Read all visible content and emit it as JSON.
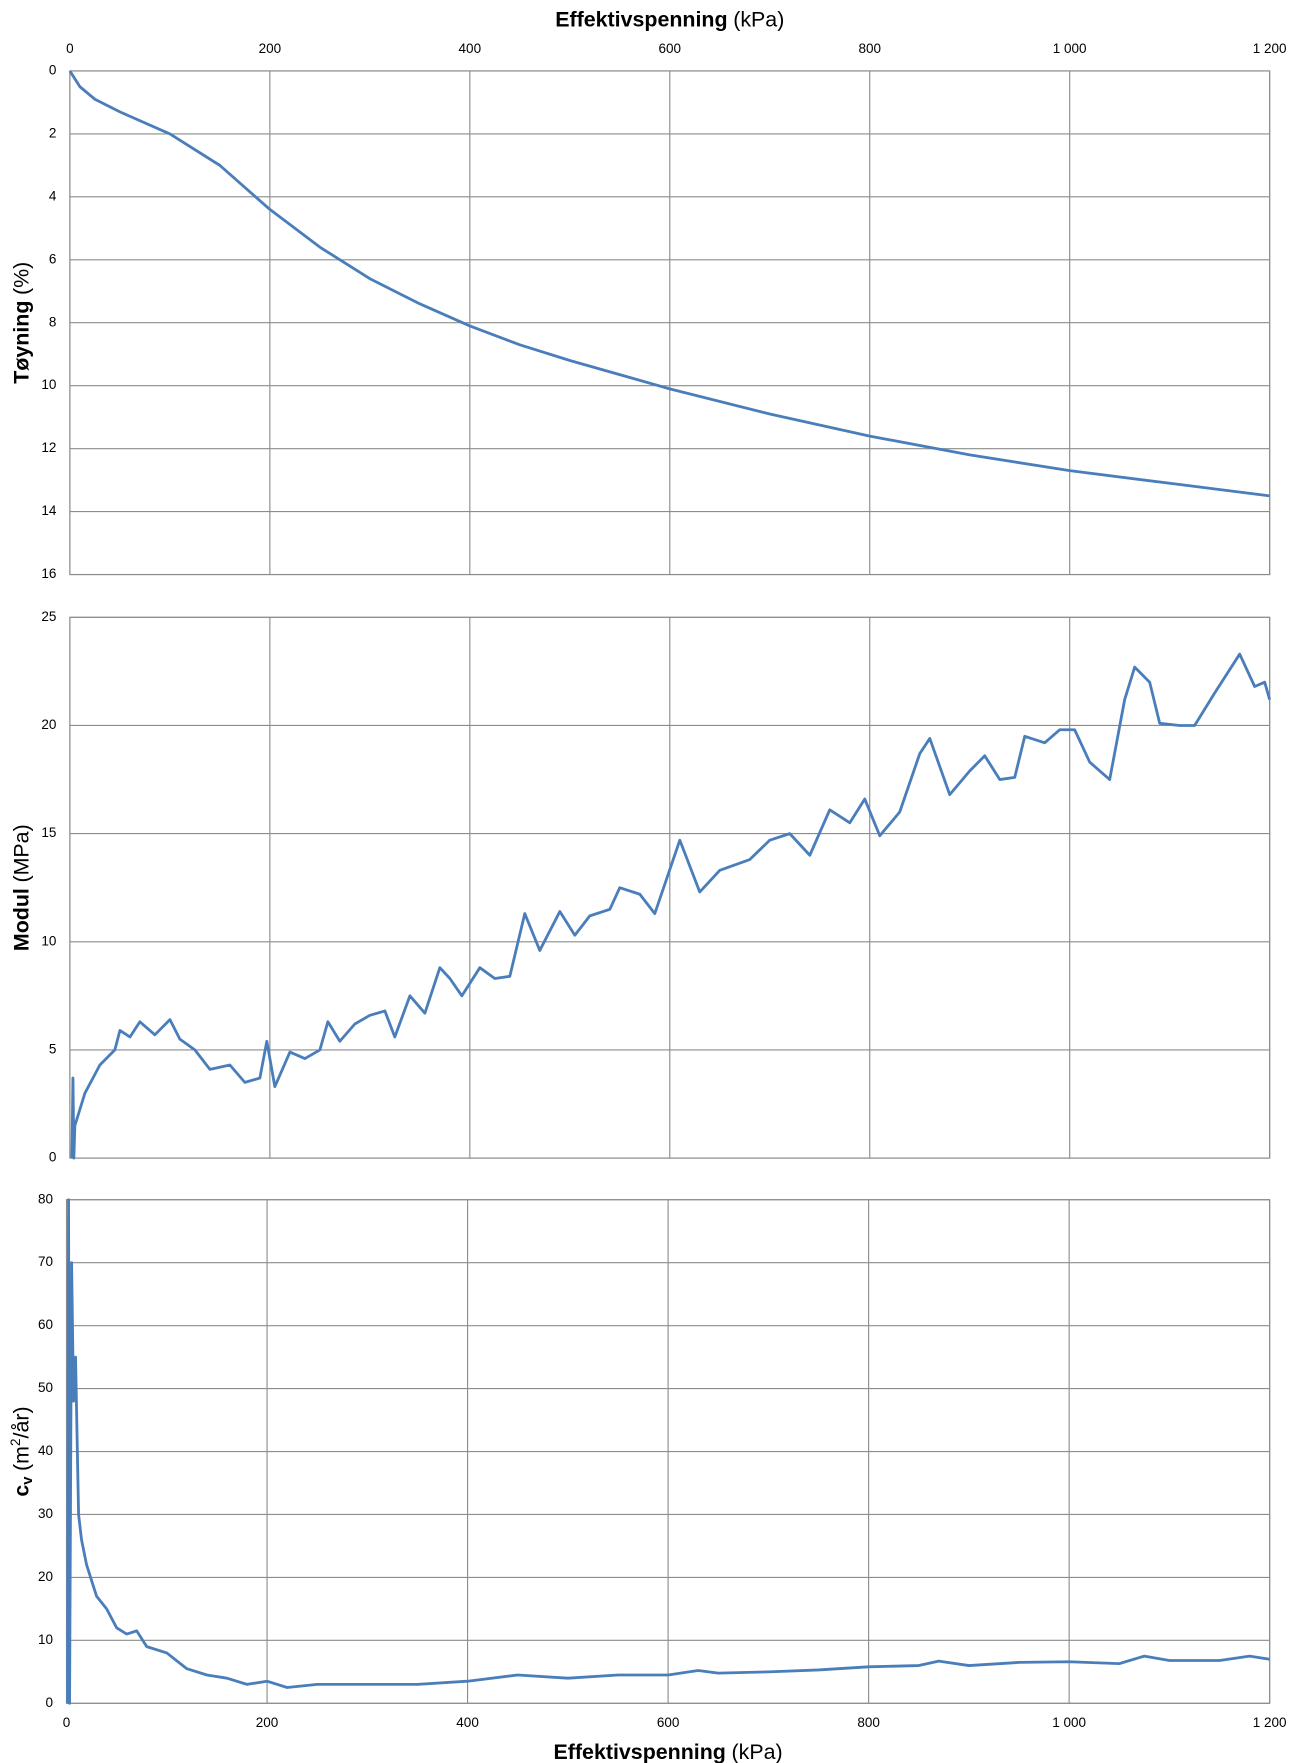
{
  "chart_data": [
    {
      "type": "line",
      "xaxis": "top",
      "xlabel": {
        "name": "Effektivspenning",
        "unit": "(kPa)"
      },
      "ylabel": {
        "name": "Tøyning",
        "unit": "(%)"
      },
      "x": [
        0,
        10,
        25,
        50,
        100,
        150,
        200,
        250,
        300,
        350,
        400,
        450,
        500,
        600,
        700,
        800,
        900,
        1000,
        1100,
        1200
      ],
      "values": [
        0,
        0.5,
        0.9,
        1.3,
        2.0,
        3.0,
        4.4,
        5.6,
        6.6,
        7.4,
        8.1,
        8.7,
        9.2,
        10.1,
        10.9,
        11.6,
        12.2,
        12.7,
        13.1,
        13.5
      ],
      "color": "#4a7ebb",
      "xlim": [
        0,
        1200
      ],
      "xticks": [
        0,
        200,
        400,
        600,
        800,
        {
          "value": 1000,
          "label": "1 000"
        },
        {
          "value": 1200,
          "label": "1 200"
        }
      ],
      "ylim": [
        0,
        16
      ],
      "y_inverted": true,
      "yticks": [
        0,
        2,
        4,
        6,
        8,
        10,
        12,
        14,
        16
      ],
      "grid": true
    },
    {
      "type": "line",
      "xaxis": "none",
      "ylabel": {
        "name": "Modul",
        "unit": "(MPa)"
      },
      "x": [
        2,
        3,
        4,
        5,
        15,
        30,
        45,
        50,
        60,
        70,
        85,
        100,
        110,
        125,
        140,
        160,
        175,
        190,
        197,
        205,
        220,
        235,
        250,
        258,
        270,
        285,
        300,
        315,
        325,
        340,
        355,
        370,
        380,
        392,
        410,
        425,
        440,
        455,
        470,
        490,
        505,
        520,
        540,
        550,
        570,
        585,
        610,
        630,
        650,
        680,
        700,
        720,
        740,
        760,
        780,
        795,
        810,
        830,
        850,
        860,
        880,
        900,
        915,
        930,
        945,
        955,
        975,
        990,
        1005,
        1020,
        1040,
        1055,
        1065,
        1080,
        1090,
        1110,
        1125,
        1145,
        1170,
        1185,
        1195,
        1200
      ],
      "values": [
        0,
        3.7,
        0,
        1.5,
        3,
        4.3,
        5,
        5.9,
        5.6,
        6.3,
        5.7,
        6.4,
        5.5,
        5,
        4.1,
        4.3,
        3.5,
        3.7,
        5.4,
        3.3,
        4.9,
        4.6,
        5,
        6.3,
        5.4,
        6.2,
        6.6,
        6.8,
        5.6,
        7.5,
        6.7,
        8.8,
        8.3,
        7.5,
        8.8,
        8.3,
        8.4,
        11.3,
        9.6,
        11.4,
        10.3,
        11.2,
        11.5,
        12.5,
        12.2,
        11.3,
        14.7,
        12.3,
        13.3,
        13.8,
        14.7,
        15,
        14,
        16.1,
        15.5,
        16.6,
        14.9,
        16,
        18.7,
        19.4,
        16.8,
        17.9,
        18.6,
        17.5,
        17.6,
        19.5,
        19.2,
        19.8,
        19.8,
        18.3,
        17.5,
        21.2,
        22.7,
        22,
        20.1,
        20,
        20,
        21.5,
        23.3,
        21.8,
        22,
        21.2
      ],
      "color": "#4a7ebb",
      "xlim": [
        0,
        1200
      ],
      "xticks": [
        0,
        200,
        400,
        600,
        800,
        1000,
        1200
      ],
      "ylim": [
        0,
        25
      ],
      "yticks": [
        0,
        5,
        10,
        15,
        20,
        25
      ],
      "grid": true
    },
    {
      "type": "line",
      "xaxis": "bottom",
      "xlabel": {
        "name": "Effektivspenning",
        "unit": "(kPa)"
      },
      "ylabel": {
        "name": "c",
        "subscript": "v",
        "unit": "(m",
        "superscript": "2",
        "unit_end": "/år)"
      },
      "x": [
        1,
        2,
        3,
        5,
        7,
        9,
        12,
        15,
        20,
        30,
        40,
        50,
        60,
        70,
        80,
        100,
        120,
        140,
        160,
        180,
        200,
        220,
        250,
        300,
        350,
        400,
        450,
        500,
        550,
        600,
        630,
        650,
        700,
        750,
        800,
        850,
        870,
        900,
        950,
        1000,
        1050,
        1075,
        1100,
        1150,
        1180,
        1200
      ],
      "values": [
        0,
        80,
        0,
        70,
        48,
        55,
        30,
        26,
        22,
        17,
        15,
        12,
        11,
        11.5,
        9,
        8,
        5.5,
        4.5,
        4,
        3,
        3.5,
        2.5,
        3,
        3,
        3,
        3.5,
        4.5,
        4,
        4.5,
        4.5,
        5.2,
        4.8,
        5,
        5.3,
        5.8,
        6,
        6.7,
        6,
        6.5,
        6.6,
        6.3,
        7.5,
        6.8,
        6.8,
        7.5,
        7
      ],
      "color": "#4a7ebb",
      "xlim": [
        0,
        1200
      ],
      "xticks": [
        0,
        200,
        400,
        600,
        800,
        {
          "value": 1000,
          "label": "1 000"
        },
        {
          "value": 1200,
          "label": "1 200"
        }
      ],
      "ylim": [
        0,
        80
      ],
      "yticks": [
        0,
        10,
        20,
        30,
        40,
        50,
        60,
        70,
        80
      ],
      "grid": true
    }
  ]
}
